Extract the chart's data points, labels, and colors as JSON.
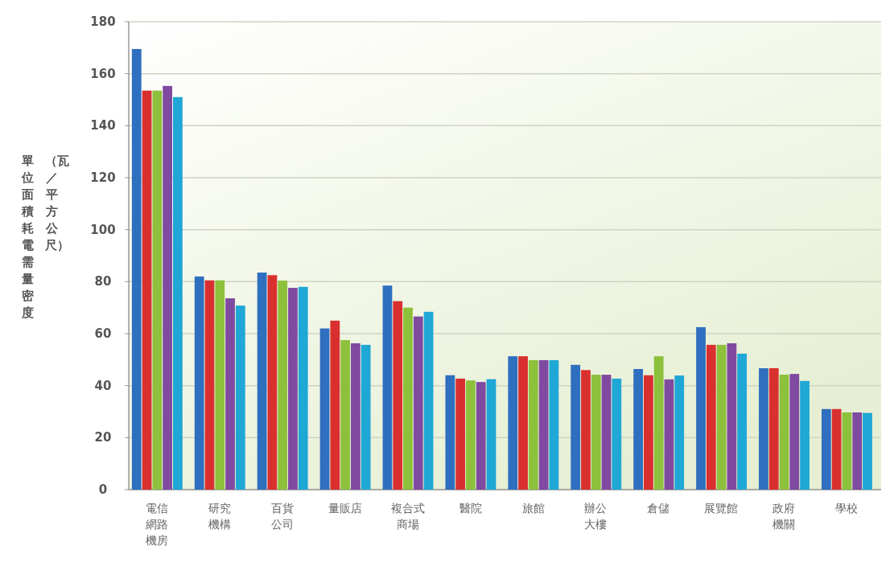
{
  "chart_data": {
    "type": "bar",
    "ylabel": "單位面積耗電需量密度（瓦／平方公尺）",
    "categories": [
      "電信網路機房",
      "研究機構",
      "百貨公司",
      "量販店",
      "複合式商場",
      "醫院",
      "旅館",
      "辦公大樓",
      "倉儲",
      "展覽館",
      "政府機關",
      "學校"
    ],
    "series": [
      {
        "color": "#2f6fbf",
        "values": [
          169.5,
          82,
          83.5,
          62,
          78.5,
          44,
          51.3,
          48,
          46.4,
          62.5,
          46.7,
          31
        ]
      },
      {
        "color": "#d9302f",
        "values": [
          153.5,
          80.5,
          82.5,
          65,
          72.5,
          42.7,
          51.3,
          46,
          44,
          55.7,
          46.7,
          31
        ]
      },
      {
        "color": "#8dc03b",
        "values": [
          153.5,
          80.5,
          80.4,
          57.5,
          70,
          42,
          49.8,
          44.2,
          51.3,
          55.7,
          44.2,
          29.7
        ]
      },
      {
        "color": "#7f4aa0",
        "values": [
          155.3,
          73.6,
          77.6,
          56.3,
          66.6,
          41.4,
          49.8,
          44.2,
          42.4,
          56.3,
          44.5,
          29.7
        ]
      },
      {
        "color": "#1fa7d6",
        "values": [
          151,
          70.8,
          78,
          55.7,
          68.4,
          42.5,
          49.8,
          42.7,
          43.9,
          52.3,
          41.8,
          29.5
        ]
      }
    ],
    "ylim": [
      0,
      180
    ],
    "yticks": [
      0,
      20,
      40,
      60,
      80,
      100,
      120,
      140,
      160,
      180
    ],
    "grid": "y"
  }
}
